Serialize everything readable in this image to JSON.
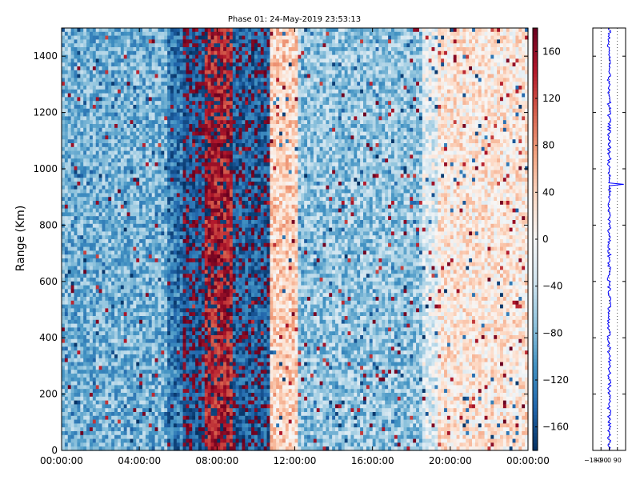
{
  "chart_data": [
    {
      "type": "heatmap",
      "title": "Phase 01: 24-May-2019 23:53:13",
      "xlabel": "",
      "ylabel": "Range (Km)",
      "x_ticks": [
        "00:00:00",
        "04:00:00",
        "08:00:00",
        "12:00:00",
        "16:00:00",
        "20:00:00",
        "00:00:00"
      ],
      "xlim_hours": [
        0,
        24
      ],
      "ylim": [
        0,
        1500
      ],
      "y_ticks": [
        0,
        200,
        400,
        600,
        800,
        1000,
        1200,
        1400
      ],
      "colorbar": {
        "ticks": [
          160,
          120,
          80,
          40,
          0,
          -40,
          -80,
          -120,
          -160
        ],
        "range": [
          -180,
          180
        ],
        "colormap": "RdBu_r",
        "low_color": "#053061",
        "mid_color": "#f7f7f7",
        "high_color": "#67001f"
      },
      "phase_bands": [
        {
          "from_hour": 0.0,
          "to_hour": 5.5,
          "phase_deg": -85
        },
        {
          "from_hour": 5.5,
          "to_hour": 6.2,
          "phase_deg": -130
        },
        {
          "from_hour": 6.2,
          "to_hour": 7.4,
          "phase_deg": -160
        },
        {
          "from_hour": 7.4,
          "to_hour": 8.8,
          "phase_deg": 150
        },
        {
          "from_hour": 8.8,
          "to_hour": 10.7,
          "phase_deg": -150
        },
        {
          "from_hour": 10.7,
          "to_hour": 12.2,
          "phase_deg": 40
        },
        {
          "from_hour": 12.2,
          "to_hour": 18.5,
          "phase_deg": -70
        },
        {
          "from_hour": 18.5,
          "to_hour": 19.3,
          "phase_deg": -20
        },
        {
          "from_hour": 19.3,
          "to_hour": 24.0,
          "phase_deg": 20
        }
      ]
    },
    {
      "type": "line",
      "title": "",
      "x_ticks": [
        "-180",
        "-90",
        "0",
        "90"
      ],
      "xlim": [
        -180,
        180
      ],
      "ylim": [
        0,
        1500
      ],
      "gridlines_x": [
        -90,
        0,
        90
      ],
      "line_color": "#0000ff",
      "mean_phase_deg": 0,
      "spikes": [
        {
          "range_km": 945,
          "phase_deg": 160
        }
      ]
    }
  ]
}
